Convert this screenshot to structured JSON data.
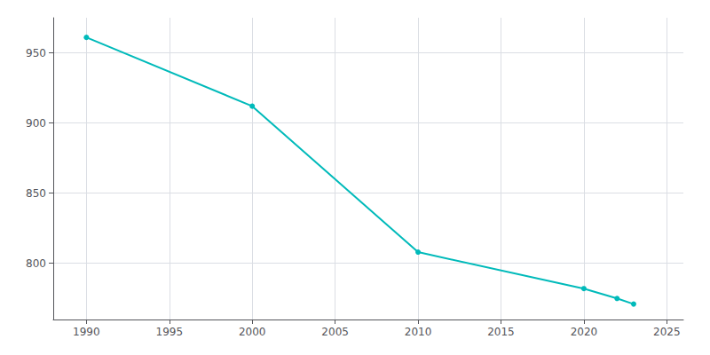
{
  "chart_data": {
    "type": "line",
    "x": [
      1990,
      2000,
      2010,
      2020,
      2022,
      2023
    ],
    "values": [
      961,
      912,
      808,
      782,
      775,
      771
    ],
    "color": "#00BABA",
    "marker": "circle",
    "xlim": [
      1988,
      2026
    ],
    "xticks": [
      1990,
      1995,
      2000,
      2005,
      2010,
      2015,
      2020,
      2025
    ],
    "ylim": [
      760,
      975
    ],
    "yticks": [
      800,
      850,
      900,
      950
    ],
    "grid": true
  }
}
